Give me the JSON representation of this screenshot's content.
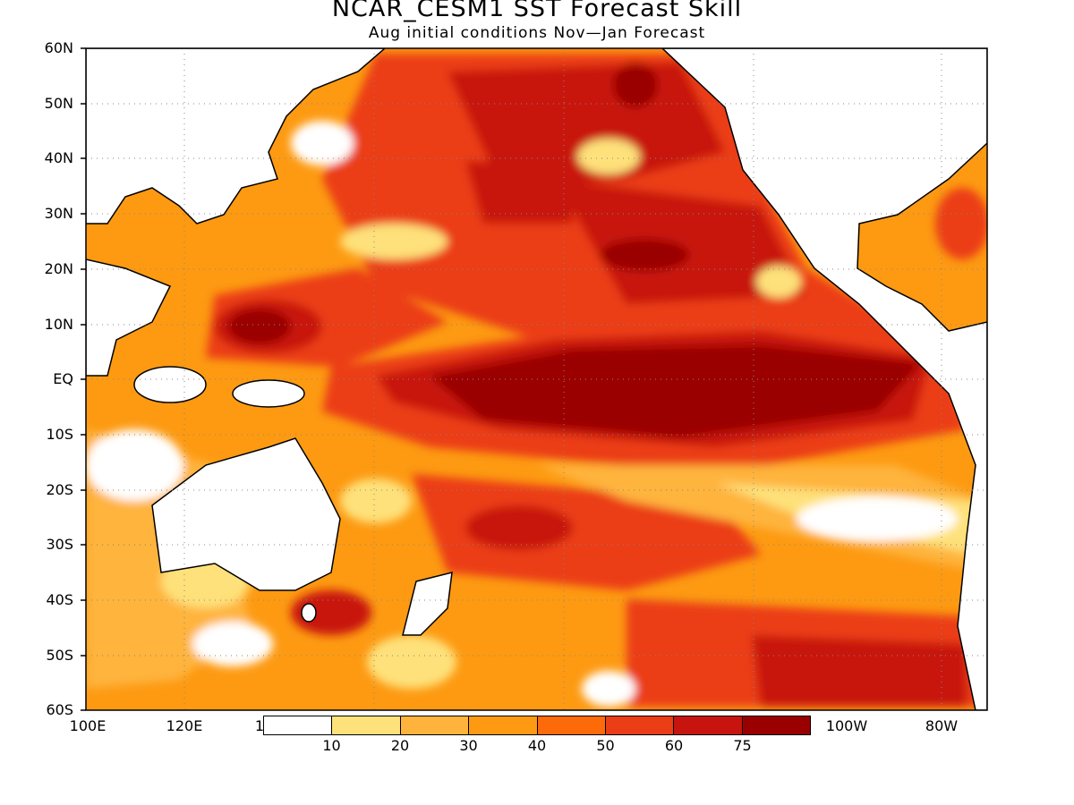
{
  "title": "NCAR_CESM1  SST Forecast Skill",
  "subtitle": "Aug initial conditions  Nov—Jan Forecast",
  "lat_labels": [
    "60N",
    "50N",
    "40N",
    "30N",
    "20N",
    "10N",
    "EQ",
    "10S",
    "20S",
    "30S",
    "40S",
    "50S",
    "60S"
  ],
  "lon_labels": [
    "100E",
    "120E",
    "1",
    "100W",
    "80W"
  ],
  "colorbar": {
    "labels": [
      "10",
      "20",
      "30",
      "40",
      "50",
      "60",
      "75"
    ],
    "colors": [
      "#ffffff",
      "#fee17a",
      "#feb43c",
      "#fd9a12",
      "#fc6a09",
      "#eb3d16",
      "#c8140e",
      "#9a0000"
    ]
  },
  "land_color": "#ffffff",
  "coast_color": "#000000",
  "grid": "dotted"
}
